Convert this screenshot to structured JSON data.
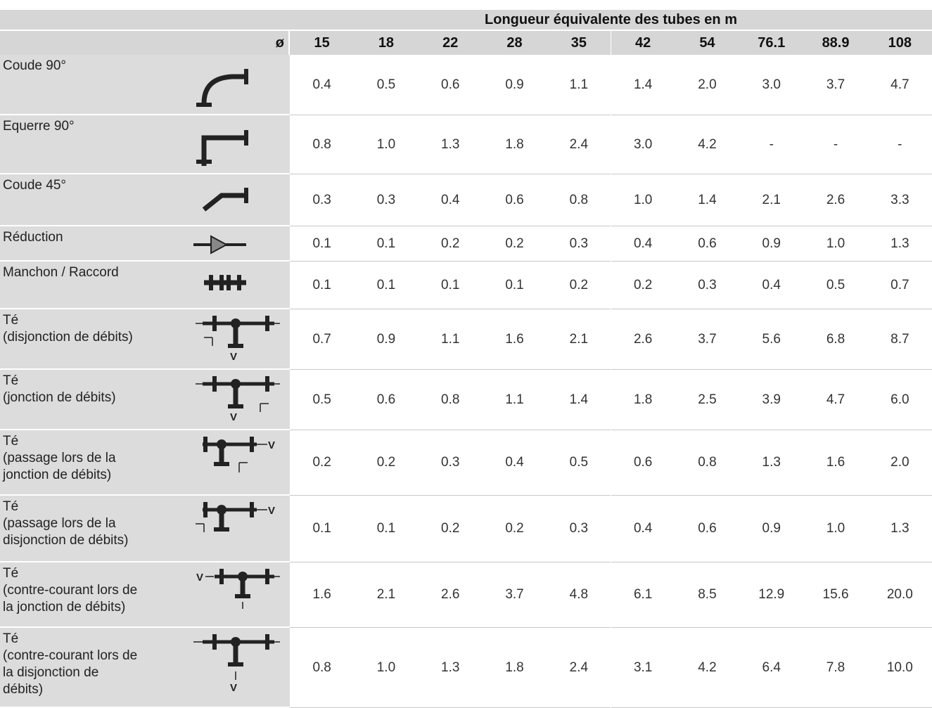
{
  "header": {
    "span_title": "Longueur équivalente des tubes en m",
    "diameter_symbol": "ø",
    "diameters": [
      "15",
      "18",
      "22",
      "28",
      "35",
      "42",
      "54",
      "76.1",
      "88.9",
      "108"
    ]
  },
  "rows": [
    {
      "label": [
        "Coude 90°"
      ],
      "values": [
        "0.4",
        "0.5",
        "0.6",
        "0.9",
        "1.1",
        "1.4",
        "2.0",
        "3.0",
        "3.7",
        "4.7"
      ]
    },
    {
      "label": [
        "Equerre 90°"
      ],
      "values": [
        "0.8",
        "1.0",
        "1.3",
        "1.8",
        "2.4",
        "3.0",
        "4.2",
        "-",
        "-",
        "-"
      ]
    },
    {
      "label": [
        "Coude 45°"
      ],
      "values": [
        "0.3",
        "0.3",
        "0.4",
        "0.6",
        "0.8",
        "1.0",
        "1.4",
        "2.1",
        "2.6",
        "3.3"
      ]
    },
    {
      "label": [
        "Réduction"
      ],
      "values": [
        "0.1",
        "0.1",
        "0.2",
        "0.2",
        "0.3",
        "0.4",
        "0.6",
        "0.9",
        "1.0",
        "1.3"
      ]
    },
    {
      "label": [
        "Manchon / Raccord"
      ],
      "values": [
        "0.1",
        "0.1",
        "0.1",
        "0.1",
        "0.2",
        "0.2",
        "0.3",
        "0.4",
        "0.5",
        "0.7"
      ]
    },
    {
      "label": [
        "Té",
        "(disjonction de débits)"
      ],
      "icon_text": "V",
      "values": [
        "0.7",
        "0.9",
        "1.1",
        "1.6",
        "2.1",
        "2.6",
        "3.7",
        "5.6",
        "6.8",
        "8.7"
      ]
    },
    {
      "label": [
        "Té",
        "(jonction de débits)"
      ],
      "icon_text": "V",
      "values": [
        "0.5",
        "0.6",
        "0.8",
        "1.1",
        "1.4",
        "1.8",
        "2.5",
        "3.9",
        "4.7",
        "6.0"
      ]
    },
    {
      "label": [
        "Té",
        "(passage lors de la",
        "jonction de débits)"
      ],
      "icon_text": "V",
      "values": [
        "0.2",
        "0.2",
        "0.3",
        "0.4",
        "0.5",
        "0.6",
        "0.8",
        "1.3",
        "1.6",
        "2.0"
      ]
    },
    {
      "label": [
        "Té",
        "(passage lors de la",
        "disjonction de débits)"
      ],
      "icon_text": "V",
      "values": [
        "0.1",
        "0.1",
        "0.2",
        "0.2",
        "0.3",
        "0.4",
        "0.6",
        "0.9",
        "1.0",
        "1.3"
      ]
    },
    {
      "label": [
        "Té",
        "(contre-courant lors de",
        "la jonction de débits)"
      ],
      "icon_text": "V",
      "values": [
        "1.6",
        "2.1",
        "2.6",
        "3.7",
        "4.8",
        "6.1",
        "8.5",
        "12.9",
        "15.6",
        "20.0"
      ]
    },
    {
      "label": [
        "Té",
        "(contre-courant lors de",
        "la disjonction de",
        "débits)"
      ],
      "icon_text": "V",
      "values": [
        "0.8",
        "1.0",
        "1.3",
        "1.8",
        "2.4",
        "3.1",
        "4.2",
        "6.4",
        "7.8",
        "10.0"
      ]
    }
  ]
}
